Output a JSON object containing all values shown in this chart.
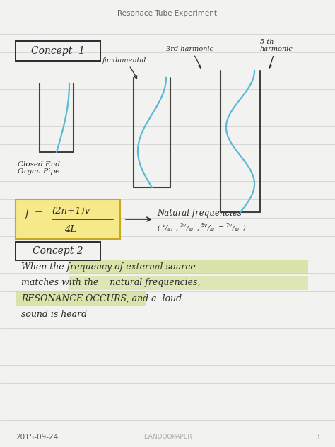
{
  "title": "Resonace Tube Experiment",
  "page_bg": "#f2f2f0",
  "line_color": "#d0d0d0",
  "tube_color": "#404040",
  "wave_color": "#5ab8d8",
  "ink_color": "#2a2a2a",
  "box_fill": "#f5e98a",
  "box_edge": "#c8a820",
  "highlight_green": "#c8d870",
  "footer_date": "2015-09-24",
  "footer_brand": "DANDOOPAPER",
  "footer_page": "3",
  "concept1_label": "Concept  1",
  "concept2_label": "Concept 2",
  "closed_end_label": "Closed End\nOrgan Pipe",
  "footer_color": "#888888",
  "fig_w": 4.74,
  "fig_h": 6.32,
  "dpi": 100
}
